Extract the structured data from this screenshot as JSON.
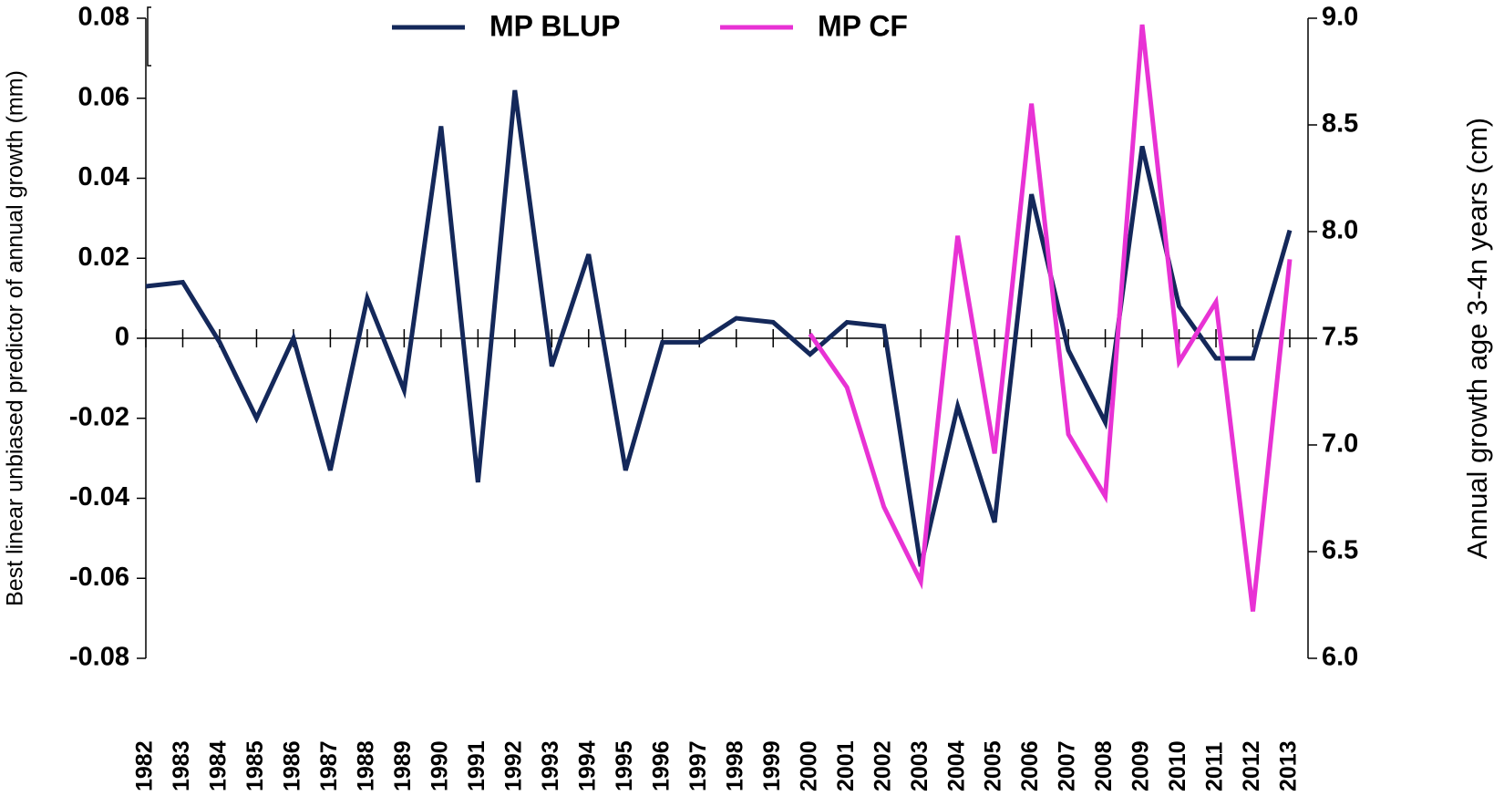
{
  "chart_data": {
    "type": "line",
    "y_label": "Best linear unbiased predictor of annual growth (mm)",
    "y2_label": "Annual growth age 3-4n years  (cm)",
    "categories": [
      "1982",
      "1983",
      "1984",
      "1985",
      "1986",
      "1987",
      "1988",
      "1989",
      "1990",
      "1991",
      "1992",
      "1993",
      "1994",
      "1995",
      "1996",
      "1997",
      "1998",
      "1999",
      "2000",
      "2001",
      "2002",
      "2003",
      "2004",
      "2005",
      "2006",
      "2007",
      "2008",
      "2009",
      "2010",
      "2011",
      "2012",
      "2013"
    ],
    "series": [
      {
        "name": "MP BLUP",
        "color": "#14285a",
        "values": [
          0.013,
          0.014,
          -0.001,
          -0.02,
          0,
          -0.033,
          0.01,
          -0.013,
          0.053,
          -0.036,
          0.062,
          -0.007,
          0.021,
          -0.033,
          -0.001,
          -0.001,
          0.005,
          0.004,
          -0.004,
          0.004,
          0.003,
          -0.057,
          -0.017,
          -0.046,
          0.036,
          -0.003,
          -0.021,
          0.048,
          0.008,
          -0.005,
          -0.005,
          0.027
        ]
      },
      {
        "name": "MP CF",
        "color": "#e832d4",
        "axis": "y2",
        "values": [
          null,
          null,
          null,
          null,
          null,
          null,
          null,
          null,
          null,
          null,
          null,
          null,
          null,
          null,
          null,
          null,
          null,
          null,
          7.52,
          7.27,
          6.71,
          6.36,
          7.98,
          6.96,
          8.6,
          7.05,
          6.76,
          8.97,
          7.39,
          7.67,
          6.22,
          7.87
        ]
      }
    ],
    "ylim": [
      -0.08,
      0.08
    ],
    "yticks": [
      -0.08,
      -0.06,
      -0.04,
      -0.02,
      0,
      0.02,
      0.04,
      0.06,
      0.08
    ],
    "y2lim": [
      6,
      9
    ],
    "y2ticks": [
      {
        "value": 6,
        "label": "6.0"
      },
      6.5,
      {
        "value": 7,
        "label": "7.0"
      },
      7.5,
      {
        "value": 8,
        "label": "8.0"
      },
      8.5,
      {
        "value": 9,
        "label": "9.0"
      }
    ],
    "legend": "top"
  }
}
